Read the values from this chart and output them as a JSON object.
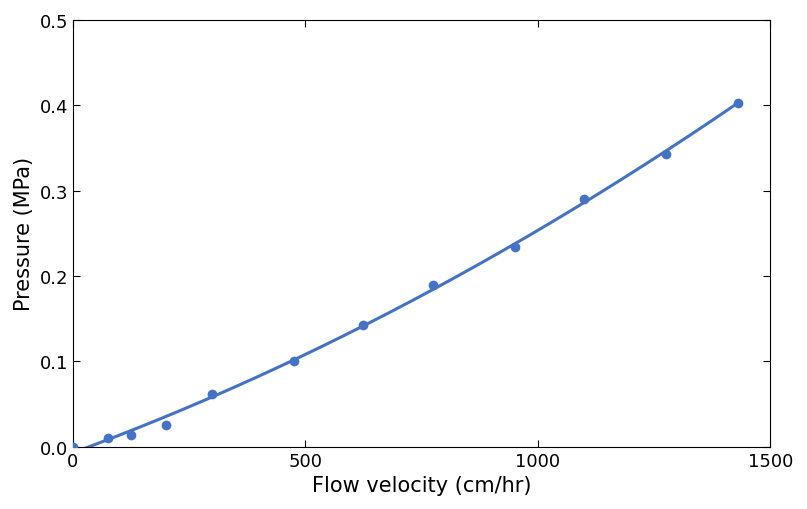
{
  "x": [
    0,
    75,
    125,
    200,
    300,
    475,
    625,
    775,
    950,
    1100,
    1275,
    1430
  ],
  "y": [
    0.0,
    0.01,
    0.014,
    0.025,
    0.062,
    0.1,
    0.143,
    0.19,
    0.234,
    0.29,
    0.343,
    0.403
  ],
  "line_color": "#4472c4",
  "marker_color": "#4472c4",
  "marker_size": 7,
  "line_width": 2.2,
  "xlabel": "Flow velocity (cm/hr)",
  "ylabel": "Pressure (MPa)",
  "xlim": [
    0,
    1500
  ],
  "ylim": [
    0,
    0.5
  ],
  "xticks": [
    0,
    500,
    1000,
    1500
  ],
  "yticks": [
    0.0,
    0.1,
    0.2,
    0.3,
    0.4,
    0.5
  ],
  "xlabel_fontsize": 15,
  "ylabel_fontsize": 15,
  "tick_fontsize": 13,
  "background_color": "#ffffff"
}
